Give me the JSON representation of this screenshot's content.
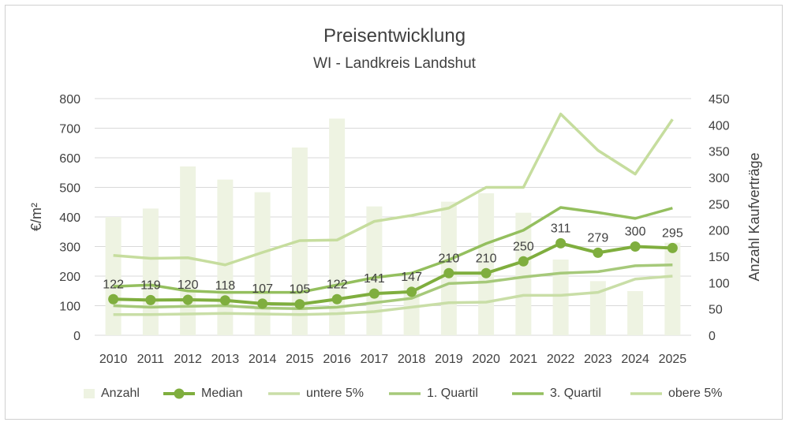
{
  "chart_data": {
    "type": "bar+line",
    "title": "Preisentwicklung",
    "subtitle": "WI - Landkreis Landshut",
    "ylabel": "€/m²",
    "y2label": "Anzahl Kaufverträge",
    "ylim": [
      0,
      800
    ],
    "y2lim": [
      0,
      450
    ],
    "yticks": [
      "0",
      "100",
      "200",
      "300",
      "400",
      "500",
      "600",
      "700",
      "800"
    ],
    "y2ticks": [
      "0",
      "50",
      "100",
      "150",
      "200",
      "250",
      "300",
      "350",
      "400",
      "450"
    ],
    "gridlines": true,
    "legend_position": "bottom",
    "categories": [
      "2010",
      "2011",
      "2012",
      "2013",
      "2014",
      "2015",
      "2016",
      "2017",
      "2018",
      "2019",
      "2020",
      "2021",
      "2022",
      "2023",
      "2024",
      "2025"
    ],
    "bars": {
      "name": "Anzahl",
      "axis": "right",
      "color": "#eef3e2",
      "values": [
        225,
        241,
        321,
        296,
        272,
        357,
        412,
        245,
        114,
        254,
        270,
        233,
        144,
        103,
        84,
        176
      ]
    },
    "series": [
      {
        "name": "Median",
        "color": "#7fae3e",
        "markers": true,
        "labels": true,
        "values": [
          122,
          119,
          120,
          118,
          107,
          105,
          122,
          141,
          147,
          210,
          210,
          250,
          311,
          279,
          300,
          295
        ],
        "data_labels": [
          "122",
          "119",
          "120",
          "118",
          "107",
          "105",
          "122",
          "141",
          "147",
          "210",
          "210",
          "250",
          "311",
          "279",
          "300",
          "295"
        ]
      },
      {
        "name": "untere 5%",
        "color": "#c9dea7",
        "values": [
          70,
          70,
          72,
          74,
          72,
          70,
          73,
          80,
          95,
          110,
          112,
          135,
          135,
          145,
          190,
          200
        ]
      },
      {
        "name": "1. Quartil",
        "color": "#a6c97a",
        "values": [
          100,
          95,
          98,
          100,
          92,
          90,
          95,
          110,
          125,
          175,
          180,
          197,
          210,
          215,
          235,
          238
        ]
      },
      {
        "name": "3. Quartil",
        "color": "#94bf5e",
        "values": [
          165,
          170,
          150,
          145,
          145,
          145,
          170,
          195,
          210,
          255,
          310,
          355,
          432,
          415,
          395,
          430
        ]
      },
      {
        "name": "obere 5%",
        "color": "#c6dd9e",
        "values": [
          270,
          260,
          262,
          238,
          280,
          320,
          322,
          385,
          405,
          430,
          500,
          500,
          748,
          625,
          545,
          730
        ]
      }
    ]
  }
}
